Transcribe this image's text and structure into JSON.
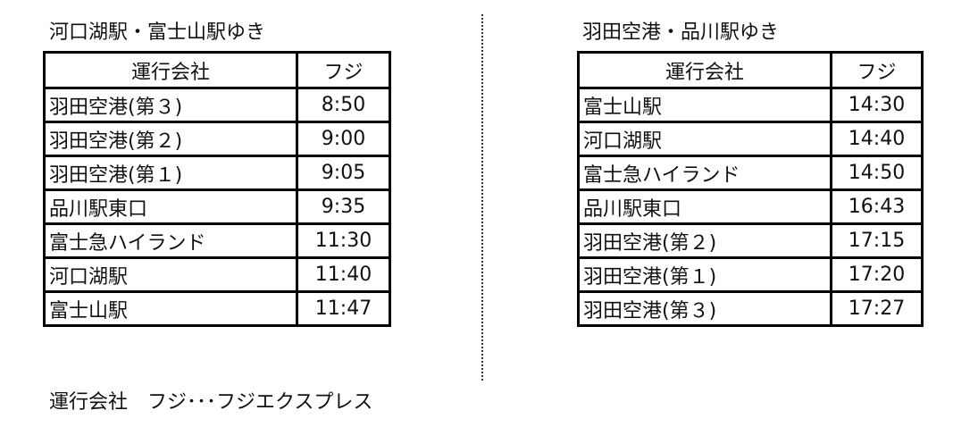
{
  "left": {
    "title": "河口湖駅・富士山駅ゆき",
    "headers": [
      "運行会社",
      "フジ"
    ],
    "rows": [
      [
        "羽田空港(第３)",
        "8:50"
      ],
      [
        "羽田空港(第２)",
        "9:00"
      ],
      [
        "羽田空港(第１)",
        "9:05"
      ],
      [
        "品川駅東口",
        "9:35"
      ],
      [
        "富士急ハイランド",
        "11:30"
      ],
      [
        "河口湖駅",
        "11:40"
      ],
      [
        "富士山駅",
        "11:47"
      ]
    ]
  },
  "right": {
    "title": "羽田空港・品川駅ゆき",
    "headers": [
      "運行会社",
      "フジ"
    ],
    "rows": [
      [
        "富士山駅",
        "14:30"
      ],
      [
        "河口湖駅",
        "14:40"
      ],
      [
        "富士急ハイランド",
        "14:50"
      ],
      [
        "品川駅東口",
        "16:43"
      ],
      [
        "羽田空港(第２)",
        "17:15"
      ],
      [
        "羽田空港(第１)",
        "17:20"
      ],
      [
        "羽田空港(第３)",
        "17:27"
      ]
    ]
  },
  "footer": "運行会社　フジ･･･フジエクスプレス"
}
